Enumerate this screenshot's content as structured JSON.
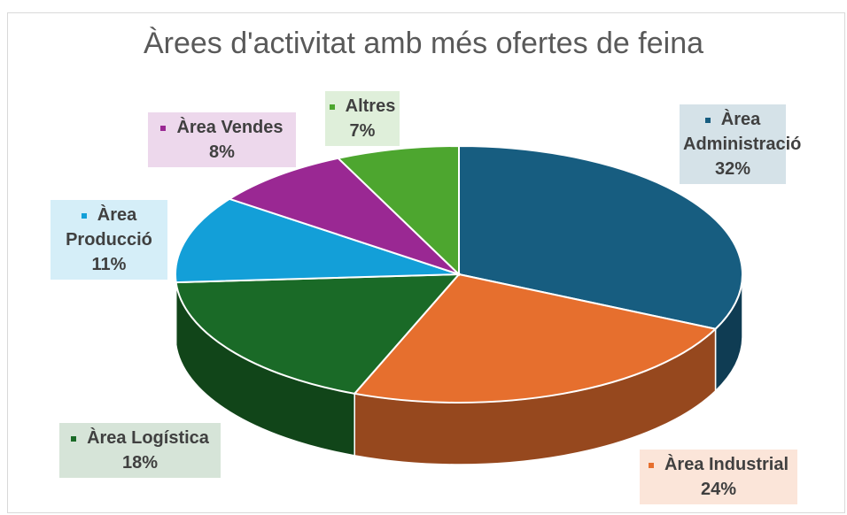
{
  "chart_data": {
    "type": "pie",
    "title": "Àrees d'activitat amb més ofertes de feina",
    "categories": [
      "Àrea Administració",
      "Àrea Industrial",
      "Àrea Logística",
      "Àrea Producció",
      "Àrea Vendes",
      "Altres"
    ],
    "values": [
      32,
      24,
      18,
      11,
      8,
      7
    ],
    "value_labels": [
      "32%",
      "24%",
      "18%",
      "11%",
      "8%",
      "7%"
    ],
    "colors": [
      "#175d80",
      "#e66f2e",
      "#1a6a27",
      "#139fd8",
      "#9a2893",
      "#4da62f"
    ]
  }
}
